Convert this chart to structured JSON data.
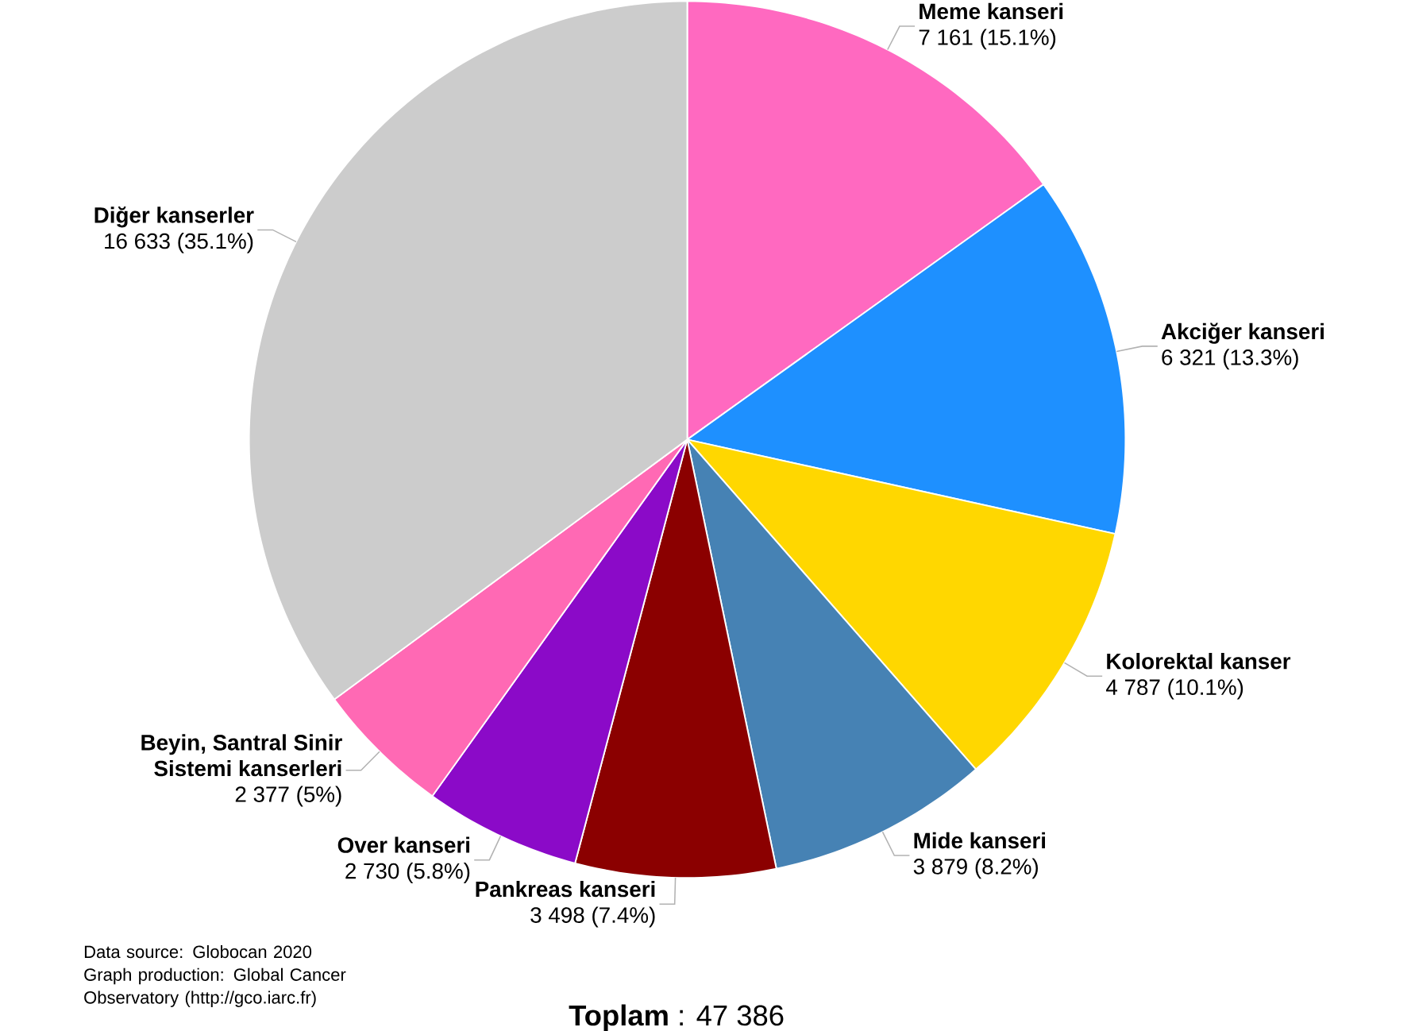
{
  "chart_data": {
    "type": "pie",
    "categories": [
      "Meme kanseri",
      "Akciğer kanseri",
      "Kolorektal kanser",
      "Mide kanseri",
      "Pankreas kanseri",
      "Over kanseri",
      "Beyin, Santral Sinir Sistemi kanserleri",
      "Diğer kanserler"
    ],
    "values": [
      7161,
      6321,
      4787,
      3879,
      3498,
      2730,
      2377,
      16633
    ],
    "value_labels": [
      "7 161 (15.1%)",
      "6 321 (13.3%)",
      "4 787 (10.1%)",
      "3 879 (8.2%)",
      "3 498 (7.4%)",
      "2 730 (5.8%)",
      "2 377 (5%)",
      "16 633 (35.1%)"
    ],
    "colors": [
      "#ff69c0",
      "#1e90ff",
      "#ffd700",
      "#4682b4",
      "#8b0000",
      "#8b0ac8",
      "#ff69b4",
      "#cccccc"
    ],
    "annotations": [
      "Data source: Globocan 2020",
      "Graph production: Global Cancer Observatory (http://gco.iarc.fr)",
      "**Toplam** : 47 386"
    ]
  }
}
